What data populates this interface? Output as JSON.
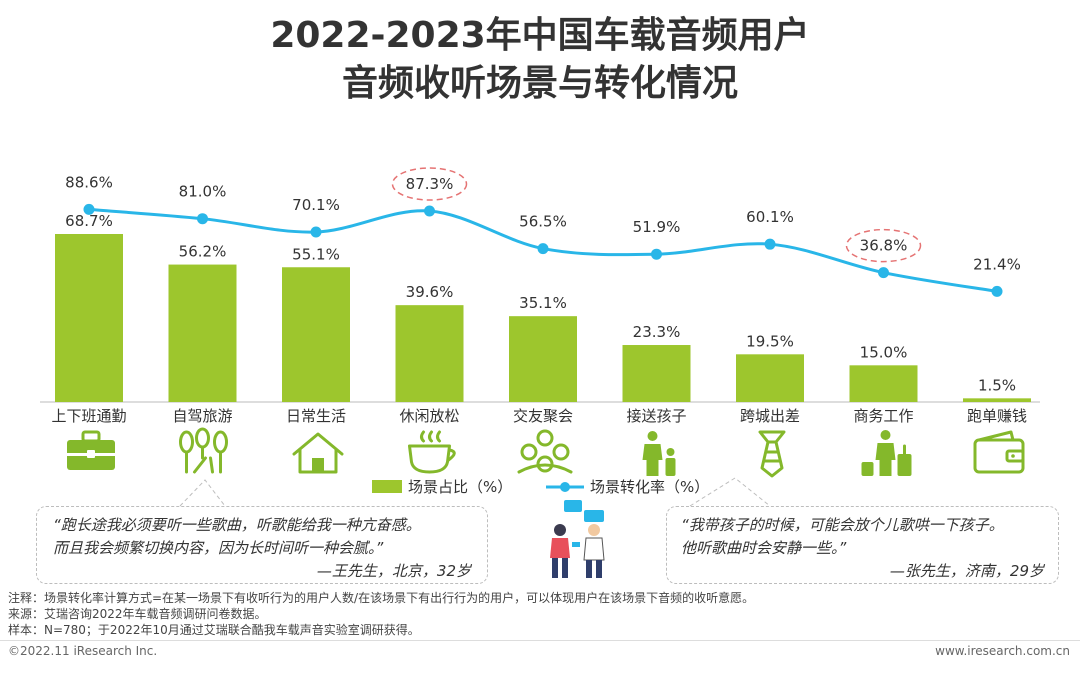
{
  "title_line1": "2022-2023年中国车载音频用户",
  "title_line2": "音频收听场景与转化情况",
  "chart_data": {
    "type": "bar",
    "categories": [
      "上下班通勤",
      "自驾旅游",
      "日常生活",
      "休闲放松",
      "交友聚会",
      "接送孩子",
      "跨城出差",
      "商务工作",
      "跑单赚钱"
    ],
    "series": [
      {
        "name": "场景占比（%）",
        "type": "bar",
        "values": [
          68.7,
          56.2,
          55.1,
          39.6,
          35.1,
          23.3,
          19.5,
          15.0,
          1.5
        ],
        "labels": [
          "68.7%",
          "56.2%",
          "55.1%",
          "39.6%",
          "35.1%",
          "23.3%",
          "19.5%",
          "15.0%",
          "1.5%"
        ],
        "color": "#9dc62d"
      },
      {
        "name": "场景转化率（%）",
        "type": "line",
        "values": [
          88.6,
          81.0,
          70.1,
          87.3,
          56.5,
          51.9,
          60.1,
          36.8,
          21.4
        ],
        "labels": [
          "88.6%",
          "81.0%",
          "70.1%",
          "87.3%",
          "56.5%",
          "51.9%",
          "60.1%",
          "36.8%",
          "21.4%"
        ],
        "color": "#29b6e8"
      }
    ],
    "highlighted_points": [
      "休闲放松",
      "商务工作"
    ],
    "legend_position": "bottom-center",
    "grid": false
  },
  "icons": [
    "briefcase-icon",
    "trees-road-icon",
    "house-icon",
    "coffee-cup-icon",
    "people-group-icon",
    "parent-child-icon",
    "tie-icon",
    "business-traveler-icon",
    "wallet-icon"
  ],
  "quote_left": {
    "line1": "“跑长途我必须要听一些歌曲，听歌能给我一种亢奋感。",
    "line2": "而且我会频繁切换内容，因为长时间听一种会腻。”",
    "signature": "—王先生，北京，32岁"
  },
  "quote_right": {
    "line1": "“我带孩子的时候，可能会放个儿歌哄一下孩子。",
    "line2": "他听歌曲时会安静一些。”",
    "signature": "—张先生，济南，29岁"
  },
  "notes": [
    "注释：场景转化率计算方式=在某一场景下有收听行为的用户人数/在该场景下有出行行为的用户，可以体现用户在该场景下音频的收听意愿。",
    "来源：艾瑞咨询2022年车载音频调研问卷数据。",
    "样本：N=780；于2022年10月通过艾瑞联合酷我车载声音实验室调研获得。"
  ],
  "footer_left": "©2022.11 iResearch Inc.",
  "footer_right": "www.iresearch.com.cn"
}
